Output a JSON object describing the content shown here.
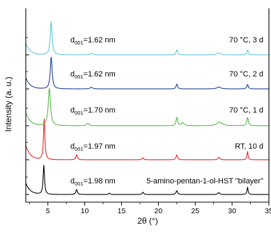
{
  "chart_data": {
    "type": "line",
    "xlabel": "2θ (°)",
    "ylabel": "Intensity (a. u.)",
    "xlim": [
      2,
      35
    ],
    "x_ticks": [
      5,
      10,
      15,
      20,
      25,
      30,
      35
    ],
    "x_tick_labels": [
      "5",
      "10",
      "15",
      "20",
      "25",
      "30",
      "35"
    ],
    "grid": false,
    "series": [
      {
        "name": "5-amino-pentan-1-ol-HST \"bilayer\"",
        "color": "#000000",
        "d_prefix": "d",
        "d_sub": "001",
        "d_value": "=1.98 nm",
        "peaks": [
          {
            "x": 4.45,
            "h": 0.9,
            "w": 0.11
          },
          {
            "x": 8.9,
            "h": 0.15,
            "w": 0.12
          },
          {
            "x": 13.35,
            "h": 0.04,
            "w": 0.12
          },
          {
            "x": 17.9,
            "h": 0.07,
            "w": 0.12
          },
          {
            "x": 22.5,
            "h": 0.12,
            "w": 0.12
          },
          {
            "x": 28.2,
            "h": 0.06,
            "w": 0.14
          },
          {
            "x": 32.1,
            "h": 0.22,
            "w": 0.09
          }
        ]
      },
      {
        "name": "RT, 10 d",
        "color": "#e8202a",
        "d_prefix": "d",
        "d_sub": "001",
        "d_value": "=1.97 nm",
        "peaks": [
          {
            "x": 4.5,
            "h": 1.0,
            "w": 0.11
          },
          {
            "x": 8.9,
            "h": 0.12,
            "w": 0.12
          },
          {
            "x": 17.9,
            "h": 0.05,
            "w": 0.12
          },
          {
            "x": 22.5,
            "h": 0.12,
            "w": 0.12
          },
          {
            "x": 28.2,
            "h": 0.06,
            "w": 0.14
          },
          {
            "x": 32.1,
            "h": 0.2,
            "w": 0.09
          }
        ]
      },
      {
        "name": "70 °C, 1 d",
        "color": "#55b848",
        "d_prefix": "d",
        "d_sub": "001",
        "d_value": "=1.70 nm",
        "peaks": [
          {
            "x": 5.2,
            "h": 1.0,
            "w": 0.18
          },
          {
            "x": 10.4,
            "h": 0.06,
            "w": 0.2
          },
          {
            "x": 22.5,
            "h": 0.22,
            "w": 0.12
          },
          {
            "x": 23.3,
            "h": 0.08,
            "w": 0.2
          },
          {
            "x": 28.3,
            "h": 0.1,
            "w": 0.4
          },
          {
            "x": 32.1,
            "h": 0.22,
            "w": 0.12
          }
        ]
      },
      {
        "name": "70 °C, 2 d",
        "color": "#1f3f99",
        "d_prefix": "d",
        "d_sub": "001",
        "d_value": "=1.62 nm",
        "peaks": [
          {
            "x": 5.45,
            "h": 1.0,
            "w": 0.15
          },
          {
            "x": 10.9,
            "h": 0.05,
            "w": 0.2
          },
          {
            "x": 22.5,
            "h": 0.15,
            "w": 0.12
          },
          {
            "x": 28.2,
            "h": 0.06,
            "w": 0.3
          },
          {
            "x": 32.1,
            "h": 0.14,
            "w": 0.12
          }
        ]
      },
      {
        "name": "70 °C, 3 d",
        "color": "#5bc8d8",
        "d_prefix": "d",
        "d_sub": "001",
        "d_value": "=1.62 nm",
        "peaks": [
          {
            "x": 5.45,
            "h": 1.0,
            "w": 0.15
          },
          {
            "x": 10.9,
            "h": 0.05,
            "w": 0.2
          },
          {
            "x": 22.5,
            "h": 0.15,
            "w": 0.12
          },
          {
            "x": 28.2,
            "h": 0.06,
            "w": 0.3
          },
          {
            "x": 32.1,
            "h": 0.14,
            "w": 0.12
          }
        ]
      }
    ]
  }
}
